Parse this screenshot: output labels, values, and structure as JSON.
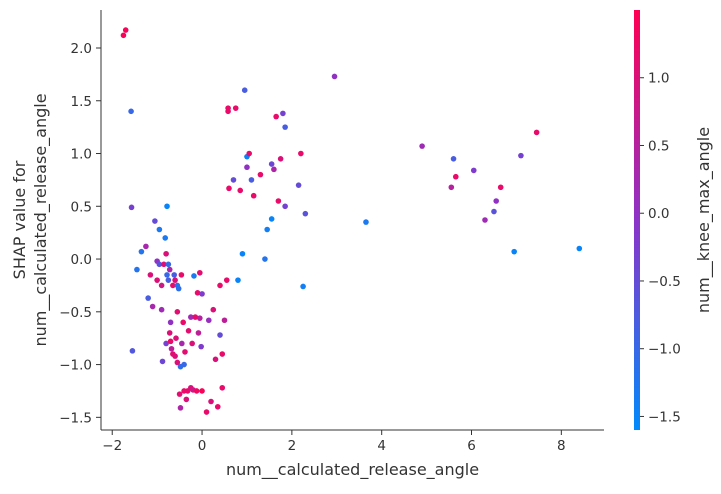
{
  "chart_data": {
    "type": "scatter",
    "xlabel": "num__calculated_release_angle",
    "ylabel_lines": [
      "SHAP value for",
      "num__calculated_release_angle"
    ],
    "xlim": [
      -2.25,
      8.95
    ],
    "ylim": [
      -1.62,
      2.36
    ],
    "xticks": [
      -2,
      0,
      2,
      4,
      6,
      8
    ],
    "yticks": [
      -1.5,
      -1.0,
      -0.5,
      0.0,
      0.5,
      1.0,
      1.5,
      2.0
    ],
    "xtick_labels": [
      "−2",
      "0",
      "2",
      "4",
      "6",
      "8"
    ],
    "ytick_labels": [
      "−1.5",
      "−1.0",
      "−0.5",
      "0.0",
      "0.5",
      "1.0",
      "1.5",
      "2.0"
    ],
    "grid": false,
    "colorbar": {
      "label": "num__knee_max_angle",
      "range": [
        -1.6,
        1.5
      ],
      "ticks": [
        -1.5,
        -1.0,
        -0.5,
        0.0,
        0.5,
        1.0
      ],
      "tick_labels": [
        "−1.5",
        "−1.0",
        "−0.5",
        "0.0",
        "0.5",
        "1.0"
      ],
      "color_low": "#008afb",
      "color_mid": "#8d33c8",
      "color_high": "#ff0052"
    },
    "points": [
      {
        "x": -1.75,
        "y": 2.12,
        "c": 1.4
      },
      {
        "x": -1.7,
        "y": 2.17,
        "c": 1.4
      },
      {
        "x": -1.58,
        "y": 1.4,
        "c": -1.0
      },
      {
        "x": -1.57,
        "y": 0.49,
        "c": -0.3
      },
      {
        "x": -1.55,
        "y": -0.87,
        "c": -0.7
      },
      {
        "x": -1.45,
        "y": -0.1,
        "c": -1.2
      },
      {
        "x": -1.35,
        "y": 0.07,
        "c": -1.2
      },
      {
        "x": -1.25,
        "y": 0.12,
        "c": 0.3
      },
      {
        "x": -1.2,
        "y": -0.37,
        "c": -0.8
      },
      {
        "x": -1.15,
        "y": -0.15,
        "c": 1.0
      },
      {
        "x": -1.1,
        "y": -0.45,
        "c": 0.3
      },
      {
        "x": -1.05,
        "y": 0.36,
        "c": -0.5
      },
      {
        "x": -1.0,
        "y": -0.02,
        "c": 0.0
      },
      {
        "x": -1.0,
        "y": -0.2,
        "c": 1.0
      },
      {
        "x": -0.95,
        "y": 0.28,
        "c": -1.3
      },
      {
        "x": -0.95,
        "y": -0.05,
        "c": -0.6
      },
      {
        "x": -0.9,
        "y": -0.25,
        "c": 0.8
      },
      {
        "x": -0.9,
        "y": -0.48,
        "c": 0.2
      },
      {
        "x": -0.88,
        "y": -0.97,
        "c": -0.4
      },
      {
        "x": -0.85,
        "y": -0.05,
        "c": 1.0
      },
      {
        "x": -0.82,
        "y": 0.2,
        "c": -1.3
      },
      {
        "x": -0.8,
        "y": 0.05,
        "c": 1.0
      },
      {
        "x": -0.8,
        "y": -0.8,
        "c": -0.3
      },
      {
        "x": -0.78,
        "y": 0.5,
        "c": -1.5
      },
      {
        "x": -0.78,
        "y": -0.15,
        "c": -1.0
      },
      {
        "x": -0.75,
        "y": -0.05,
        "c": -1.0
      },
      {
        "x": -0.75,
        "y": -0.2,
        "c": -0.8
      },
      {
        "x": -0.72,
        "y": -0.1,
        "c": 0.4
      },
      {
        "x": -0.72,
        "y": -0.7,
        "c": 1.0
      },
      {
        "x": -0.7,
        "y": -0.6,
        "c": 0.0
      },
      {
        "x": -0.7,
        "y": -0.78,
        "c": 1.2
      },
      {
        "x": -0.68,
        "y": -0.85,
        "c": 0.6
      },
      {
        "x": -0.65,
        "y": -0.25,
        "c": 1.2
      },
      {
        "x": -0.65,
        "y": -0.9,
        "c": 1.1
      },
      {
        "x": -0.62,
        "y": -0.15,
        "c": -0.8
      },
      {
        "x": -0.6,
        "y": -0.2,
        "c": 1.0
      },
      {
        "x": -0.6,
        "y": -0.92,
        "c": 1.0
      },
      {
        "x": -0.58,
        "y": -0.75,
        "c": 1.0
      },
      {
        "x": -0.55,
        "y": -0.25,
        "c": -1.2
      },
      {
        "x": -0.55,
        "y": -0.5,
        "c": 1.1
      },
      {
        "x": -0.55,
        "y": -0.98,
        "c": 1.0
      },
      {
        "x": -0.52,
        "y": -0.28,
        "c": -1.1
      },
      {
        "x": -0.5,
        "y": -1.28,
        "c": 1.1
      },
      {
        "x": -0.48,
        "y": -1.02,
        "c": -1.1
      },
      {
        "x": -0.48,
        "y": -1.41,
        "c": 0.4
      },
      {
        "x": -0.46,
        "y": -0.15,
        "c": 1.2
      },
      {
        "x": -0.45,
        "y": -0.8,
        "c": 0.3
      },
      {
        "x": -0.42,
        "y": -0.6,
        "c": 1.2
      },
      {
        "x": -0.4,
        "y": -1.0,
        "c": -1.0
      },
      {
        "x": -0.4,
        "y": -1.25,
        "c": 1.2
      },
      {
        "x": -0.38,
        "y": -0.88,
        "c": 1.1
      },
      {
        "x": -0.35,
        "y": -1.33,
        "c": 1.0
      },
      {
        "x": -0.32,
        "y": -1.25,
        "c": 1.2
      },
      {
        "x": -0.3,
        "y": -0.68,
        "c": 1.1
      },
      {
        "x": -0.25,
        "y": -0.55,
        "c": 0.2
      },
      {
        "x": -0.25,
        "y": -1.22,
        "c": 1.0
      },
      {
        "x": -0.22,
        "y": -0.8,
        "c": 1.0
      },
      {
        "x": -0.2,
        "y": -1.24,
        "c": 0.8
      },
      {
        "x": -0.18,
        "y": -0.16,
        "c": -1.3
      },
      {
        "x": -0.15,
        "y": -0.55,
        "c": 1.2
      },
      {
        "x": -0.12,
        "y": -1.25,
        "c": 1.3
      },
      {
        "x": -0.1,
        "y": -0.32,
        "c": 1.2
      },
      {
        "x": -0.08,
        "y": -0.7,
        "c": 0.6
      },
      {
        "x": -0.05,
        "y": -0.13,
        "c": 1.1
      },
      {
        "x": -0.05,
        "y": -0.56,
        "c": 0.5
      },
      {
        "x": -0.02,
        "y": -0.83,
        "c": -0.2
      },
      {
        "x": 0.0,
        "y": -0.33,
        "c": -0.2
      },
      {
        "x": 0.0,
        "y": -1.25,
        "c": 1.4
      },
      {
        "x": 0.1,
        "y": -1.45,
        "c": 1.2
      },
      {
        "x": 0.15,
        "y": -0.58,
        "c": 0.1
      },
      {
        "x": 0.2,
        "y": -1.35,
        "c": 1.0
      },
      {
        "x": 0.25,
        "y": -0.48,
        "c": 1.0
      },
      {
        "x": 0.3,
        "y": -0.95,
        "c": 1.0
      },
      {
        "x": 0.35,
        "y": -1.4,
        "c": 1.2
      },
      {
        "x": 0.4,
        "y": -0.72,
        "c": -0.5
      },
      {
        "x": 0.4,
        "y": -0.25,
        "c": 1.2
      },
      {
        "x": 0.45,
        "y": -0.9,
        "c": 1.2
      },
      {
        "x": 0.45,
        "y": -1.22,
        "c": 1.2
      },
      {
        "x": 0.5,
        "y": -0.58,
        "c": 0.6
      },
      {
        "x": 0.55,
        "y": -0.2,
        "c": 1.2
      },
      {
        "x": 0.58,
        "y": 1.43,
        "c": 1.2
      },
      {
        "x": 0.58,
        "y": 1.4,
        "c": 1.2
      },
      {
        "x": 0.6,
        "y": 0.67,
        "c": 1.2
      },
      {
        "x": 0.7,
        "y": 0.75,
        "c": -0.5
      },
      {
        "x": 0.75,
        "y": 1.43,
        "c": 1.2
      },
      {
        "x": 0.8,
        "y": -0.2,
        "c": -1.5
      },
      {
        "x": 0.85,
        "y": 0.65,
        "c": 1.2
      },
      {
        "x": 0.9,
        "y": 0.05,
        "c": -1.5
      },
      {
        "x": 0.95,
        "y": 1.6,
        "c": -0.8
      },
      {
        "x": 1.0,
        "y": 0.97,
        "c": -1.5
      },
      {
        "x": 1.0,
        "y": 0.87,
        "c": 0.0
      },
      {
        "x": 1.05,
        "y": 1.0,
        "c": 1.2
      },
      {
        "x": 1.1,
        "y": 0.75,
        "c": -0.8
      },
      {
        "x": 1.15,
        "y": 0.6,
        "c": 1.2
      },
      {
        "x": 1.3,
        "y": 0.8,
        "c": 1.2
      },
      {
        "x": 1.4,
        "y": 0.0,
        "c": -1.2
      },
      {
        "x": 1.45,
        "y": 0.28,
        "c": -1.4
      },
      {
        "x": 1.55,
        "y": 0.38,
        "c": -1.5
      },
      {
        "x": 1.55,
        "y": 0.9,
        "c": -0.4
      },
      {
        "x": 1.6,
        "y": 0.85,
        "c": 0.4
      },
      {
        "x": 1.65,
        "y": 1.35,
        "c": 1.2
      },
      {
        "x": 1.7,
        "y": 0.55,
        "c": 1.2
      },
      {
        "x": 1.75,
        "y": 0.95,
        "c": 1.0
      },
      {
        "x": 1.8,
        "y": 1.38,
        "c": -0.3
      },
      {
        "x": 1.85,
        "y": 1.25,
        "c": -0.8
      },
      {
        "x": 1.85,
        "y": 0.5,
        "c": -0.3
      },
      {
        "x": 2.15,
        "y": 0.7,
        "c": -0.5
      },
      {
        "x": 2.2,
        "y": 1.0,
        "c": 1.2
      },
      {
        "x": 2.25,
        "y": -0.26,
        "c": -1.4
      },
      {
        "x": 2.3,
        "y": 0.43,
        "c": -0.6
      },
      {
        "x": 2.95,
        "y": 1.73,
        "c": 0.0
      },
      {
        "x": 3.65,
        "y": 0.35,
        "c": -1.3
      },
      {
        "x": 4.9,
        "y": 1.07,
        "c": 0.2
      },
      {
        "x": 5.55,
        "y": 0.68,
        "c": 0.5
      },
      {
        "x": 5.6,
        "y": 0.95,
        "c": -0.8
      },
      {
        "x": 5.65,
        "y": 0.78,
        "c": 1.2
      },
      {
        "x": 6.05,
        "y": 0.84,
        "c": -0.2
      },
      {
        "x": 6.3,
        "y": 0.37,
        "c": 0.2
      },
      {
        "x": 6.5,
        "y": 0.45,
        "c": -0.6
      },
      {
        "x": 6.55,
        "y": 0.55,
        "c": 0.0
      },
      {
        "x": 6.65,
        "y": 0.68,
        "c": 1.2
      },
      {
        "x": 6.95,
        "y": 0.07,
        "c": -1.5
      },
      {
        "x": 7.1,
        "y": 0.98,
        "c": -0.3
      },
      {
        "x": 7.45,
        "y": 1.2,
        "c": 1.2
      },
      {
        "x": 8.4,
        "y": 0.1,
        "c": -1.5
      }
    ]
  }
}
